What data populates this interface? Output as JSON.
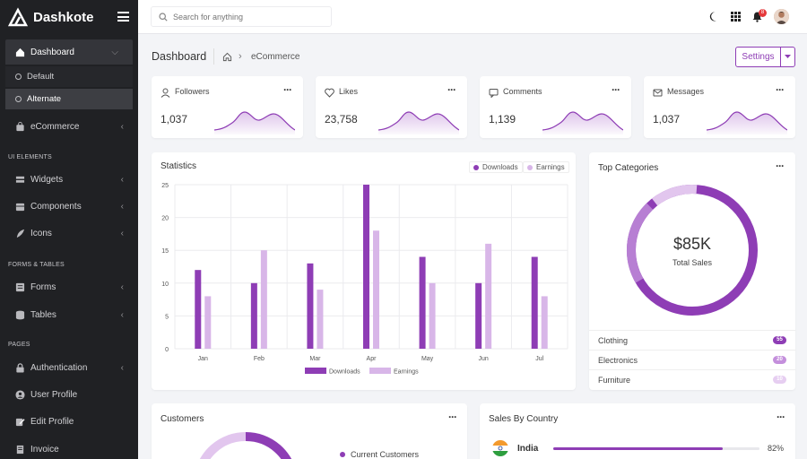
{
  "brand": {
    "name": "Dashkote"
  },
  "sidebar": {
    "dashboard": "Dashboard",
    "sub_items": [
      "Default",
      "Alternate"
    ],
    "ecommerce": "eCommerce",
    "section_ui": "UI ELEMENTS",
    "widgets": "Widgets",
    "components": "Components",
    "icons": "Icons",
    "section_forms": "FORMS & TABLES",
    "forms": "Forms",
    "tables": "Tables",
    "section_pages": "PAGES",
    "authentication": "Authentication",
    "user_profile": "User Profile",
    "edit_profile": "Edit Profile",
    "invoice": "Invoice"
  },
  "topbar": {
    "search_placeholder": "Search for anything",
    "notification_count": "8"
  },
  "header": {
    "title": "Dashboard",
    "breadcrumb": "eCommerce",
    "settings_label": "Settings"
  },
  "stats": [
    {
      "label": "Followers",
      "value": "1,037",
      "icon": "user-icon"
    },
    {
      "label": "Likes",
      "value": "23,758",
      "icon": "heart-icon"
    },
    {
      "label": "Comments",
      "value": "1,139",
      "icon": "comment-icon"
    },
    {
      "label": "Messages",
      "value": "1,037",
      "icon": "mail-icon"
    }
  ],
  "statistics": {
    "title": "Statistics",
    "legend": [
      "Downloads",
      "Earnings"
    ]
  },
  "chart_data": {
    "type": "bar",
    "categories": [
      "Jan",
      "Feb",
      "Mar",
      "Apr",
      "May",
      "Jun",
      "Jul"
    ],
    "series": [
      {
        "name": "Downloads",
        "values": [
          12,
          10,
          13,
          25,
          14,
          10,
          14
        ]
      },
      {
        "name": "Earnings",
        "values": [
          8,
          15,
          9,
          18,
          10,
          16,
          8
        ]
      }
    ],
    "ylim": [
      0,
      25
    ],
    "yticks": [
      0,
      5,
      10,
      15,
      20,
      25
    ],
    "grid": true,
    "legend": "top-right"
  },
  "top_categories": {
    "title": "Top Categories",
    "total": "$85K",
    "total_label": "Total Sales",
    "items": [
      {
        "name": "Clothing",
        "count": "55"
      },
      {
        "name": "Electronics",
        "count": "20"
      },
      {
        "name": "Furniture",
        "count": "10"
      }
    ]
  },
  "customers": {
    "title": "Customers",
    "legend_current": "Current Customers"
  },
  "sales_by_country": {
    "title": "Sales By Country",
    "items": [
      {
        "country": "India",
        "percent": "82%",
        "fraction": 0.82
      }
    ]
  },
  "colors": {
    "primary": "#8e3db5",
    "light": "#d8b6e8",
    "sidebar": "#202124"
  }
}
